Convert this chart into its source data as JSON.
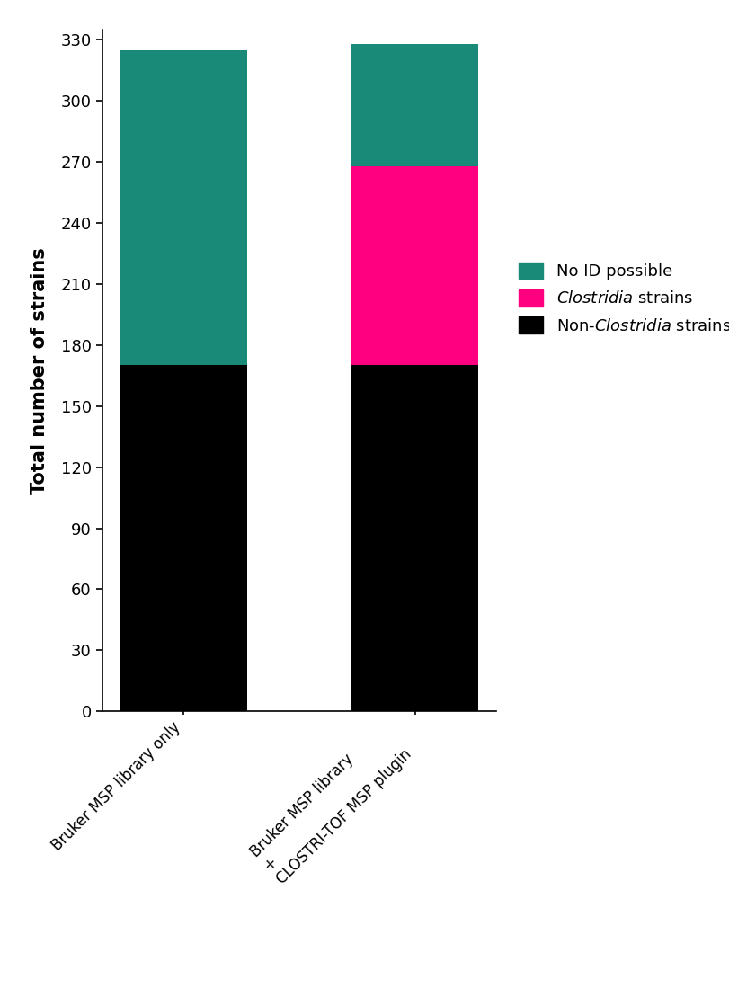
{
  "categories": [
    "Bruker MSP library only",
    "Bruker MSP library\n+\nCLOSTRI-TOF MSP plugin"
  ],
  "non_clostridia": [
    170,
    170
  ],
  "clostridia": [
    0,
    98
  ],
  "no_id": [
    155,
    60
  ],
  "color_non_clostridia": "#000000",
  "color_clostridia": "#FF0080",
  "color_no_id": "#1A8A78",
  "ylabel": "Total number of strains",
  "yticks": [
    0,
    30,
    60,
    90,
    120,
    150,
    180,
    210,
    240,
    270,
    300,
    330
  ],
  "ylim": [
    0,
    335
  ],
  "bar_width": 0.55,
  "background_color": "#ffffff",
  "legend_no_id": "No ID possible",
  "legend_clostridia": "Clostridia strains",
  "legend_non_clostridia": "Non-Clostridia strains"
}
